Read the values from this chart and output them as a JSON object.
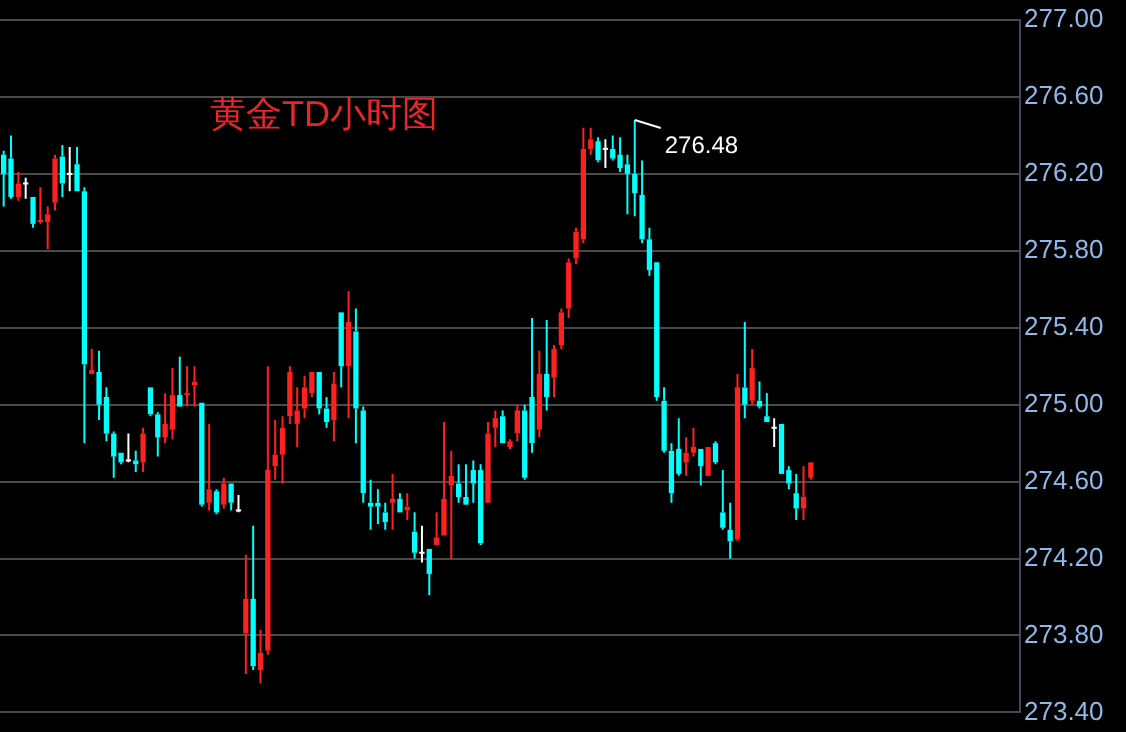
{
  "chart_data": {
    "type": "candlestick",
    "title": "黄金TD小时图",
    "colors": [
      "#00ffff",
      "#00ffff",
      "#ff2020",
      "#ffffff",
      "#00ffff",
      "#ff2020",
      "#ff2020",
      "#ff2020",
      "#00ffff",
      "#ffffff",
      "#00ffff",
      "#00ffff",
      "#ff2020",
      "#00ffff",
      "#00ffff",
      "#00ffff",
      "#00ffff",
      "#ffffff",
      "#00ffff",
      "#ff2020",
      "#00ffff",
      "#00ffff",
      "#ff2020",
      "#ff2020",
      "#00ffff",
      "#ff2020",
      "#ff2020",
      "#00ffff",
      "#ff2020",
      "#00ffff",
      "#ff2020",
      "#00ffff",
      "#ffffff",
      "#ff2020",
      "#00ffff",
      "#ff2020",
      "#ff2020",
      "#ff2020",
      "#ff2020",
      "#ff2020",
      "#ff2020",
      "#ff2020",
      "#ff2020",
      "#00ffff",
      "#00ffff",
      "#ff2020",
      "#00ffff",
      "#ff2020",
      "#00ffff",
      "#00ffff",
      "#00ffff",
      "#00ffff",
      "#00ffff",
      "#ff2020",
      "#00ffff",
      "#ff2020",
      "#00ffff",
      "#ffffff",
      "#00ffff",
      "#ff2020",
      "#ff2020",
      "#ff2020",
      "#00ffff",
      "#00ffff",
      "#00ffff",
      "#00ffff",
      "#ff2020",
      "#ff2020",
      "#00ffff",
      "#ff2020",
      "#ff2020",
      "#00ffff",
      "#00ffff",
      "#ff2020",
      "#00ffff",
      "#ff2020",
      "#ff2020",
      "#ff2020",
      "#ff2020",
      "#ff2020",
      "#ff2020",
      "#00ffff",
      "#ffffff",
      "#00ffff",
      "#00ffff",
      "#00ffff",
      "#00ffff",
      "#00ffff",
      "#00ffff",
      "#00ffff",
      "#00ffff",
      "#00ffff",
      "#00ffff",
      "#ff2020",
      "#ff2020",
      "#00ffff",
      "#ff2020",
      "#00ffff",
      "#00ffff",
      "#00ffff",
      "#ff2020",
      "#00ffff",
      "#ff2020",
      "#00ffff",
      "#00ffff",
      "#ffffff",
      "#00ffff",
      "#00ffff",
      "#00ffff",
      "#ff2020",
      "#ff2020",
      null,
      null,
      null,
      null,
      null,
      null,
      null,
      null,
      null,
      null,
      null,
      null,
      null,
      null,
      null,
      null,
      null,
      null,
      null,
      null,
      null,
      null,
      null,
      null,
      null,
      null,
      null,
      null
    ],
    "ylim": [
      273.4,
      277
    ],
    "yticks": [
      {
        "value": 273.4,
        "label": "273.40"
      },
      {
        "value": 273.8,
        "label": "273.80"
      },
      {
        "value": 274.2,
        "label": "274.20"
      },
      {
        "value": 274.6,
        "label": "274.60"
      },
      {
        "value": 275,
        "label": "275.00"
      },
      {
        "value": 275.4,
        "label": "275.40"
      },
      {
        "value": 275.8,
        "label": "275.80"
      },
      {
        "value": 276.2,
        "label": "276.20"
      },
      {
        "value": 276.6,
        "label": "276.60"
      },
      {
        "value": 277,
        "label": "277.00"
      }
    ],
    "grid": "y",
    "tick_labels": "y",
    "legend": false,
    "annotations": [
      "276.48"
    ],
    "categories": [
      null,
      null,
      null,
      null,
      null,
      null,
      null,
      null,
      null,
      null,
      null,
      null,
      null,
      null,
      null,
      null,
      null,
      null,
      null,
      null,
      null,
      null,
      null,
      null,
      null,
      null,
      null,
      null,
      null,
      null,
      null,
      null,
      null,
      null,
      null,
      null,
      null,
      null,
      null,
      null,
      null,
      null,
      null,
      null,
      null,
      null,
      null,
      null,
      null,
      null,
      null,
      null,
      null,
      null,
      null,
      null,
      null,
      null,
      null,
      null,
      null,
      null,
      null,
      null,
      null,
      null,
      null,
      null,
      null,
      null,
      null,
      null,
      null,
      null,
      null,
      null,
      null,
      null,
      null,
      null,
      null,
      null,
      null,
      null,
      null,
      null,
      null,
      null,
      null,
      null,
      null,
      null,
      null,
      null,
      null,
      null,
      null,
      null,
      null,
      null,
      null,
      null,
      null,
      null,
      null,
      null,
      null,
      null,
      null,
      null,
      null,
      null,
      null,
      null,
      null,
      null,
      null,
      null,
      null,
      null,
      null,
      null,
      null,
      null,
      null,
      null,
      null,
      null,
      null,
      null,
      null,
      null,
      null,
      null,
      null,
      null,
      null,
      null,
      null
    ],
    "ohlc": [
      [
        276.3,
        276.32,
        276.03,
        276.2
      ],
      [
        276.28,
        276.4,
        276.07,
        276.08
      ],
      [
        276.08,
        276.21,
        276.06,
        276.15
      ],
      [
        276.15,
        276.18,
        276.07,
        276.15
      ],
      [
        276.08,
        276.08,
        275.92,
        275.94
      ],
      [
        275.95,
        276.13,
        275.94,
        275.96
      ],
      [
        275.95,
        276.03,
        275.81,
        275.99
      ],
      [
        276.05,
        276.3,
        276.01,
        276.28
      ],
      [
        276.29,
        276.35,
        276.08,
        276.15
      ],
      [
        276.2,
        276.34,
        276.11,
        276.2
      ],
      [
        276.25,
        276.34,
        276.11,
        276.11
      ],
      [
        276.11,
        276.13,
        274.8,
        275.21
      ],
      [
        275.16,
        275.29,
        275.16,
        275.18
      ],
      [
        275.17,
        275.28,
        274.92,
        275.0
      ],
      [
        275.04,
        275.09,
        274.81,
        274.85
      ],
      [
        274.85,
        274.86,
        274.62,
        274.73
      ],
      [
        274.75,
        274.75,
        274.69,
        274.7
      ],
      [
        274.71,
        274.85,
        274.7,
        274.71
      ],
      [
        274.71,
        274.76,
        274.65,
        274.69
      ],
      [
        274.7,
        274.88,
        274.65,
        274.85
      ],
      [
        275.09,
        275.09,
        274.94,
        274.95
      ],
      [
        274.95,
        274.96,
        274.73,
        274.83
      ],
      [
        274.83,
        275.06,
        274.8,
        274.9
      ],
      [
        274.87,
        275.19,
        274.82,
        275.05
      ],
      [
        275.05,
        275.25,
        274.99,
        274.99
      ],
      [
        275.05,
        275.2,
        274.99,
        275.06
      ],
      [
        275.1,
        275.2,
        274.99,
        275.12
      ],
      [
        275.01,
        275.01,
        274.47,
        274.48
      ],
      [
        274.49,
        274.9,
        274.45,
        274.56
      ],
      [
        274.55,
        274.56,
        274.43,
        274.44
      ],
      [
        274.48,
        274.62,
        274.46,
        274.59
      ],
      [
        274.59,
        274.59,
        274.45,
        274.49
      ],
      [
        274.45,
        274.53,
        274.44,
        274.45
      ],
      [
        273.81,
        274.22,
        273.6,
        273.99
      ],
      [
        273.99,
        274.37,
        273.62,
        273.64
      ],
      [
        273.62,
        273.83,
        273.55,
        273.71
      ],
      [
        273.72,
        275.2,
        273.7,
        274.66
      ],
      [
        274.68,
        274.92,
        274.61,
        274.74
      ],
      [
        274.74,
        274.94,
        274.59,
        274.88
      ],
      [
        274.94,
        275.2,
        274.9,
        275.17
      ],
      [
        274.9,
        275.09,
        274.78,
        274.97
      ],
      [
        274.98,
        275.15,
        274.93,
        275.09
      ],
      [
        275.06,
        275.17,
        275.04,
        275.17
      ],
      [
        275.17,
        275.17,
        274.95,
        274.98
      ],
      [
        274.98,
        275.04,
        274.88,
        274.91
      ],
      [
        274.92,
        275.17,
        274.81,
        275.11
      ],
      [
        275.48,
        275.48,
        275.09,
        275.2
      ],
      [
        275.2,
        275.59,
        274.93,
        275.43
      ],
      [
        275.38,
        275.5,
        274.8,
        274.98
      ],
      [
        274.97,
        274.99,
        274.49,
        274.54
      ],
      [
        274.49,
        274.61,
        274.35,
        274.47
      ],
      [
        274.49,
        274.56,
        274.38,
        274.47
      ],
      [
        274.44,
        274.49,
        274.35,
        274.39
      ],
      [
        274.49,
        274.64,
        274.35,
        274.51
      ],
      [
        274.51,
        274.54,
        274.44,
        274.44
      ],
      [
        274.45,
        274.54,
        274.4,
        274.47
      ],
      [
        274.34,
        274.44,
        274.2,
        274.23
      ],
      [
        274.23,
        274.37,
        274.18,
        274.23
      ],
      [
        274.25,
        274.25,
        274.01,
        274.12
      ],
      [
        274.27,
        274.44,
        274.27,
        274.31
      ],
      [
        274.32,
        274.91,
        274.32,
        274.51
      ],
      [
        274.58,
        274.76,
        274.2,
        274.63
      ],
      [
        274.59,
        274.69,
        274.49,
        274.52
      ],
      [
        274.52,
        274.69,
        274.48,
        274.48
      ],
      [
        274.66,
        274.71,
        274.49,
        274.59
      ],
      [
        274.66,
        274.69,
        274.27,
        274.28
      ],
      [
        274.49,
        274.91,
        274.49,
        274.85
      ],
      [
        274.88,
        274.97,
        274.78,
        274.93
      ],
      [
        274.94,
        274.97,
        274.8,
        274.8
      ],
      [
        274.78,
        274.82,
        274.77,
        274.81
      ],
      [
        274.85,
        275.0,
        274.81,
        274.97
      ],
      [
        274.97,
        275.0,
        274.61,
        274.62
      ],
      [
        275.04,
        275.45,
        274.75,
        274.8
      ],
      [
        274.87,
        275.28,
        274.83,
        275.16
      ],
      [
        275.16,
        275.44,
        274.97,
        275.04
      ],
      [
        275.14,
        275.31,
        275.04,
        275.29
      ],
      [
        275.31,
        275.5,
        275.29,
        275.48
      ],
      [
        275.5,
        275.76,
        275.45,
        275.74
      ],
      [
        275.76,
        275.92,
        275.73,
        275.9
      ],
      [
        275.86,
        276.44,
        275.84,
        276.33
      ],
      [
        276.33,
        276.44,
        276.3,
        276.38
      ],
      [
        276.37,
        276.39,
        276.26,
        276.27
      ],
      [
        276.33,
        276.38,
        276.23,
        276.33
      ],
      [
        276.33,
        276.4,
        276.27,
        276.28
      ],
      [
        276.3,
        276.39,
        276.21,
        276.23
      ],
      [
        276.25,
        276.3,
        275.99,
        276.2
      ],
      [
        276.2,
        276.48,
        275.98,
        276.1
      ],
      [
        276.09,
        276.27,
        275.84,
        275.86
      ],
      [
        275.86,
        275.92,
        275.67,
        275.7
      ],
      [
        275.74,
        275.74,
        275.02,
        275.04
      ],
      [
        275.02,
        275.09,
        274.75,
        274.76
      ],
      [
        274.76,
        274.8,
        274.49,
        274.54
      ],
      [
        274.77,
        274.93,
        274.63,
        274.64
      ],
      [
        274.7,
        274.83,
        274.63,
        274.75
      ],
      [
        274.75,
        274.88,
        274.73,
        274.78
      ],
      [
        274.77,
        274.77,
        274.58,
        274.68
      ],
      [
        274.63,
        274.78,
        274.63,
        274.78
      ],
      [
        274.8,
        274.81,
        274.69,
        274.7
      ],
      [
        274.44,
        274.66,
        274.35,
        274.36
      ],
      [
        274.35,
        274.49,
        274.2,
        274.29
      ],
      [
        274.3,
        275.16,
        274.29,
        275.09
      ],
      [
        275.09,
        275.43,
        274.93,
        275.0
      ],
      [
        275.02,
        275.29,
        275.0,
        275.19
      ],
      [
        275.02,
        275.12,
        274.98,
        274.99
      ],
      [
        274.94,
        275.06,
        274.91,
        274.91
      ],
      [
        274.88,
        274.93,
        274.78,
        274.88
      ],
      [
        274.9,
        274.9,
        274.64,
        274.64
      ],
      [
        274.66,
        274.68,
        274.56,
        274.59
      ],
      [
        274.54,
        274.64,
        274.4,
        274.46
      ],
      [
        274.46,
        274.68,
        274.4,
        274.52
      ],
      [
        274.62,
        274.7,
        274.61,
        274.7
      ],
      null,
      null,
      null,
      null,
      null,
      null,
      null,
      null,
      null,
      null,
      null,
      null,
      null,
      null,
      null,
      null,
      null,
      null,
      null,
      null,
      null,
      null,
      null,
      null,
      null,
      null,
      null,
      null
    ]
  }
}
